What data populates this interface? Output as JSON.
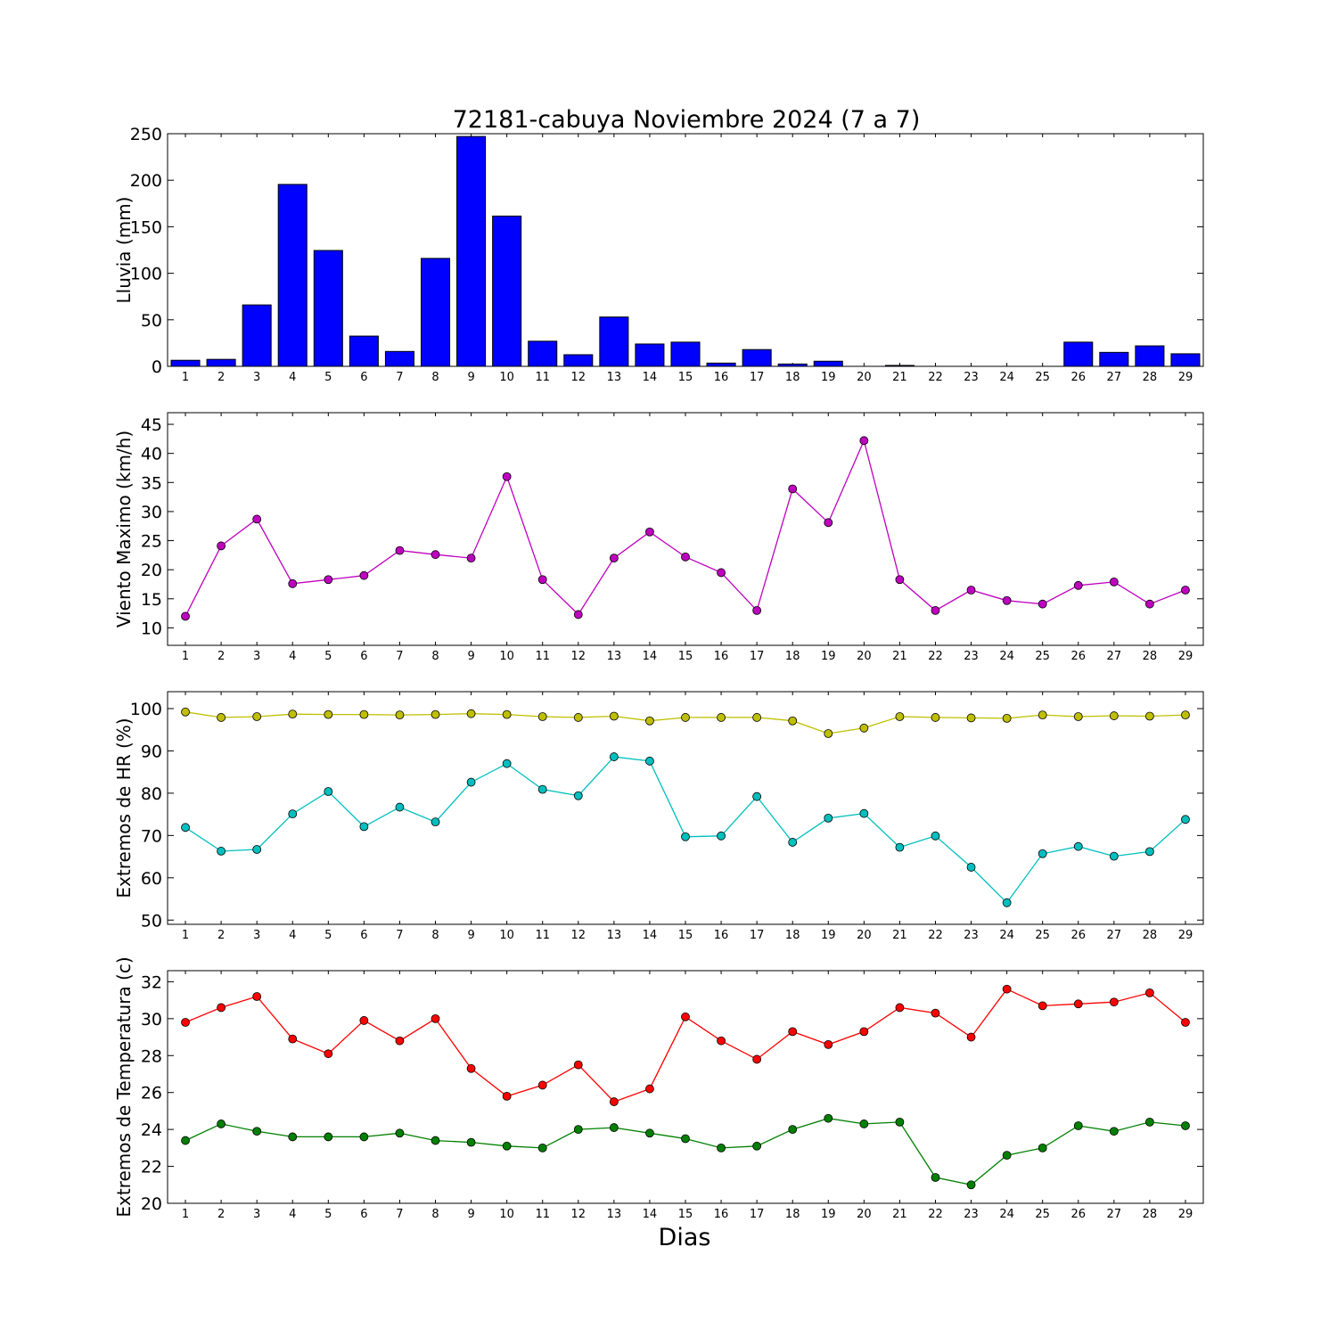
{
  "figure": {
    "title": "72181-cabuya Noviembre 2024  (7 a 7)",
    "xlabel": "Dias"
  },
  "chart_data": [
    {
      "type": "bar",
      "ylabel": "Lluvia (mm)",
      "ylim": [
        0,
        250
      ],
      "yticks": [
        0,
        50,
        100,
        150,
        200,
        250
      ],
      "categories": [
        "1",
        "2",
        "3",
        "4",
        "5",
        "6",
        "7",
        "8",
        "9",
        "10",
        "11",
        "12",
        "13",
        "14",
        "15",
        "16",
        "17",
        "18",
        "19",
        "20",
        "21",
        "22",
        "23",
        "24",
        "25",
        "26",
        "27",
        "28",
        "29"
      ],
      "color": "#0000ff",
      "values": [
        6.5,
        7.5,
        66,
        195.5,
        124.5,
        32.5,
        16,
        116,
        247,
        161.5,
        27,
        12.5,
        53,
        24,
        26,
        3.5,
        18,
        2.5,
        5.5,
        0,
        1,
        0,
        0,
        0,
        0,
        26,
        15,
        22,
        13.5
      ]
    },
    {
      "type": "line",
      "ylabel": "Viento Maximo (km/h)",
      "ylim": [
        7,
        47
      ],
      "yticks": [
        10,
        15,
        20,
        25,
        30,
        35,
        40,
        45
      ],
      "x": [
        1,
        2,
        3,
        4,
        5,
        6,
        7,
        8,
        9,
        10,
        11,
        12,
        13,
        14,
        15,
        16,
        17,
        18,
        19,
        20,
        21,
        22,
        23,
        24,
        25,
        26,
        27,
        28,
        29
      ],
      "series": [
        {
          "color": "#bf00bf",
          "values": [
            12,
            24.1,
            28.7,
            17.6,
            18.3,
            19,
            23.3,
            22.6,
            22,
            36,
            18.3,
            12.3,
            22,
            26.5,
            22.2,
            19.5,
            13,
            33.9,
            28.1,
            42.2,
            18.3,
            13,
            16.5,
            14.7,
            14.1,
            17.3,
            17.9,
            14.1,
            16.5
          ]
        }
      ]
    },
    {
      "type": "line",
      "ylabel": "Extremos de HR (%)",
      "ylim": [
        49,
        104
      ],
      "yticks": [
        50,
        60,
        70,
        80,
        90,
        100
      ],
      "x": [
        1,
        2,
        3,
        4,
        5,
        6,
        7,
        8,
        9,
        10,
        11,
        12,
        13,
        14,
        15,
        16,
        17,
        18,
        19,
        20,
        21,
        22,
        23,
        24,
        25,
        26,
        27,
        28,
        29
      ],
      "series": [
        {
          "color": "#bfbf00",
          "values": [
            99.2,
            97.9,
            98.1,
            98.7,
            98.6,
            98.6,
            98.5,
            98.6,
            98.8,
            98.6,
            98.1,
            97.9,
            98.2,
            97.1,
            97.9,
            97.9,
            97.9,
            97.1,
            94.1,
            95.4,
            98.1,
            97.9,
            97.8,
            97.7,
            98.5,
            98.1,
            98.3,
            98.2,
            98.5
          ]
        },
        {
          "color": "#00bfbf",
          "values": [
            71.9,
            66.3,
            66.7,
            75.1,
            80.4,
            72.1,
            76.7,
            73.2,
            82.6,
            87,
            80.9,
            79.4,
            88.6,
            87.6,
            69.7,
            69.9,
            79.2,
            68.4,
            74.1,
            75.2,
            67.2,
            69.9,
            62.5,
            54.1,
            65.7,
            67.4,
            65.1,
            66.2,
            73.8
          ]
        }
      ]
    },
    {
      "type": "line",
      "ylabel": "Extremos de Temperatura (c)",
      "ylim": [
        20,
        32.6
      ],
      "yticks": [
        20,
        22,
        24,
        26,
        28,
        30,
        32
      ],
      "x": [
        1,
        2,
        3,
        4,
        5,
        6,
        7,
        8,
        9,
        10,
        11,
        12,
        13,
        14,
        15,
        16,
        17,
        18,
        19,
        20,
        21,
        22,
        23,
        24,
        25,
        26,
        27,
        28,
        29
      ],
      "series": [
        {
          "color": "#ff0000",
          "values": [
            29.8,
            30.6,
            31.2,
            28.9,
            28.1,
            29.9,
            28.8,
            30,
            27.3,
            25.8,
            26.4,
            27.5,
            25.5,
            26.2,
            30.1,
            28.8,
            27.8,
            29.3,
            28.6,
            29.3,
            30.6,
            30.3,
            29,
            31.6,
            30.7,
            30.8,
            30.9,
            31.4,
            29.8
          ]
        },
        {
          "color": "#008000",
          "values": [
            23.4,
            24.3,
            23.9,
            23.6,
            23.6,
            23.6,
            23.8,
            23.4,
            23.3,
            23.1,
            23,
            24,
            24.1,
            23.8,
            23.5,
            23,
            23.1,
            24,
            24.6,
            24.3,
            24.4,
            21.4,
            21,
            22.6,
            23,
            24.2,
            23.9,
            24.4,
            24.2
          ]
        }
      ]
    }
  ]
}
